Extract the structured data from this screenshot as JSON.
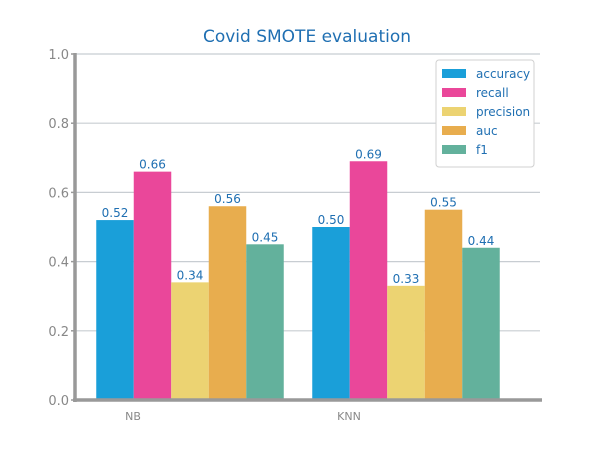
{
  "chart_data": {
    "type": "bar",
    "title": "Covid SMOTE evaluation",
    "xlabel": "",
    "ylabel": "",
    "categories": [
      "NB",
      "KNN"
    ],
    "ylim": [
      0,
      1.0
    ],
    "yticks": [
      "0.0",
      "0.2",
      "0.4",
      "0.6",
      "0.8",
      "1.0"
    ],
    "grid": "y",
    "legend_position": "top-right",
    "series": [
      {
        "name": "accuracy",
        "values": [
          0.52,
          0.5
        ],
        "labels": [
          "0.52",
          "0.50"
        ],
        "color": "#1a9fd9"
      },
      {
        "name": "recall",
        "values": [
          0.66,
          0.69
        ],
        "labels": [
          "0.66",
          "0.69"
        ],
        "color": "#ea479a"
      },
      {
        "name": "precision",
        "values": [
          0.34,
          0.33
        ],
        "labels": [
          "0.34",
          "0.33"
        ],
        "color": "#ecd372"
      },
      {
        "name": "auc",
        "values": [
          0.56,
          0.55
        ],
        "labels": [
          "0.56",
          "0.55"
        ],
        "color": "#e8ad4e"
      },
      {
        "name": "f1",
        "values": [
          0.45,
          0.44
        ],
        "labels": [
          "0.45",
          "0.44"
        ],
        "color": "#63b19c"
      }
    ]
  },
  "colors": {
    "title": "#1f6fb2",
    "data_label": "#1f6fb2",
    "legend_text": "#1f6fb2",
    "tick_text": "#888888",
    "axis": "#999999",
    "grid": "#c8cdd2"
  }
}
